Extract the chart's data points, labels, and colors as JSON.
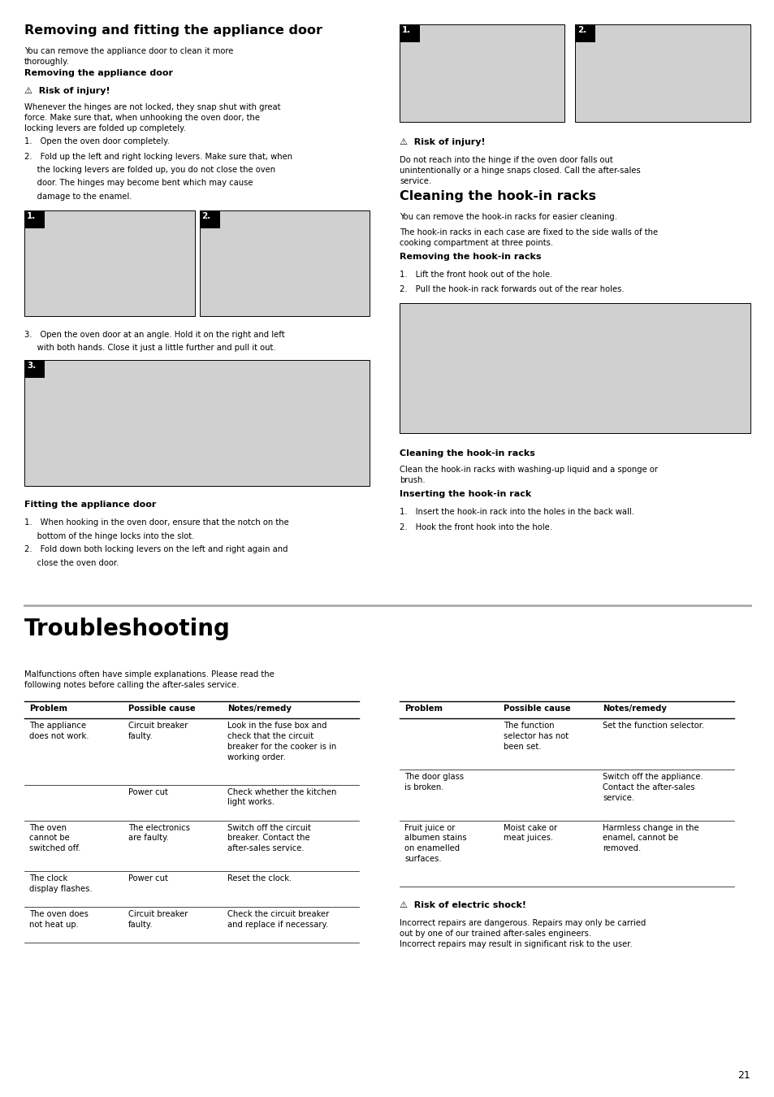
{
  "page_width": 9.54,
  "page_height": 13.5,
  "bg_color": "#ffffff",
  "section1_title": "Removing and fitting the appliance door",
  "section1_intro": "You can remove the appliance door to clean it more\nthoroughly.",
  "subsection1_title": "Removing the appliance door",
  "warning1_title": "⚠  Risk of injury!",
  "warning1_text": "Whenever the hinges are not locked, they snap shut with great\nforce. Make sure that, when unhooking the oven door, the\nlocking levers are folded up completely.",
  "step_1": "1. Open the oven door completely.",
  "step_2a": "2. Fold up the left and right locking levers. Make sure that, when",
  "step_2b": "     the locking levers are folded up, you do not close the oven",
  "step_2c": "     door. The hinges may become bent which may cause",
  "step_2d": "     damage to the enamel.",
  "step_3a": "3. Open the oven door at an angle. Hold it on the right and left",
  "step_3b": "     with both hands. Close it just a little further and pull it out.",
  "fitting_title": "Fitting the appliance door",
  "fitting_1a": "1. When hooking in the oven door, ensure that the notch on the",
  "fitting_1b": "     bottom of the hinge locks into the slot.",
  "fitting_2a": "2. Fold down both locking levers on the left and right again and",
  "fitting_2b": "     close the oven door.",
  "right_warning_title": "⚠  Risk of injury!",
  "right_warning_text": "Do not reach into the hinge if the oven door falls out\nunintentionally or a hinge snaps closed. Call the after-sales\nservice.",
  "section2_title": "Cleaning the hook-in racks",
  "section2_intro1": "You can remove the hook-in racks for easier cleaning.",
  "section2_intro2": "The hook-in racks in each case are fixed to the side walls of the\ncooking compartment at three points.",
  "removing_racks_title": "Removing the hook-in racks",
  "removing_racks_1": "1. Lift the front hook out of the hole.",
  "removing_racks_2": "2. Pull the hook-in rack forwards out of the rear holes.",
  "cleaning_racks_title": "Cleaning the hook-in racks",
  "cleaning_racks_text": "Clean the hook-in racks with washing-up liquid and a sponge or\nbrush.",
  "inserting_title": "Inserting the hook-in rack",
  "inserting_1": "1. Insert the hook-in rack into the holes in the back wall.",
  "inserting_2": "2. Hook the front hook into the hole.",
  "section3_title": "Troubleshooting",
  "section3_intro": "Malfunctions often have simple explanations. Please read the\nfollowing notes before calling the after-sales service.",
  "table_headers": [
    "Problem",
    "Possible cause",
    "Notes/remedy"
  ],
  "table_rows": [
    [
      "The appliance\ndoes not work.",
      "Circuit breaker\nfaulty.",
      "Look in the fuse box and\ncheck that the circuit\nbreaker for the cooker is in\nworking order."
    ],
    [
      "",
      "Power cut",
      "Check whether the kitchen\nlight works."
    ],
    [
      "The oven\ncannot be\nswitched off.",
      "The electronics\nare faulty.",
      "Switch off the circuit\nbreaker. Contact the\nafter-sales service."
    ],
    [
      "The clock\ndisplay flashes.",
      "Power cut",
      "Reset the clock."
    ],
    [
      "The oven does\nnot heat up.",
      "Circuit breaker\nfaulty.",
      "Check the circuit breaker\nand replace if necessary."
    ]
  ],
  "right_table_headers": [
    "Problem",
    "Possible cause",
    "Notes/remedy"
  ],
  "right_table_rows": [
    [
      "",
      "The function\nselector has not\nbeen set.",
      "Set the function selector."
    ],
    [
      "The door glass\nis broken.",
      "",
      "Switch off the appliance.\nContact the after-sales\nservice."
    ],
    [
      "Fruit juice or\nalbumen stains\non enamelled\nsurfaces.",
      "Moist cake or\nmeat juices.",
      "Harmless change in the\nenamel, cannot be\nremoved."
    ]
  ],
  "right_electric_title": "⚠  Risk of electric shock!",
  "right_electric_text": "Incorrect repairs are dangerous. Repairs may only be carried\nout by one of our trained after-sales engineers.\nIncorrect repairs may result in significant risk to the user.",
  "page_number": "21"
}
